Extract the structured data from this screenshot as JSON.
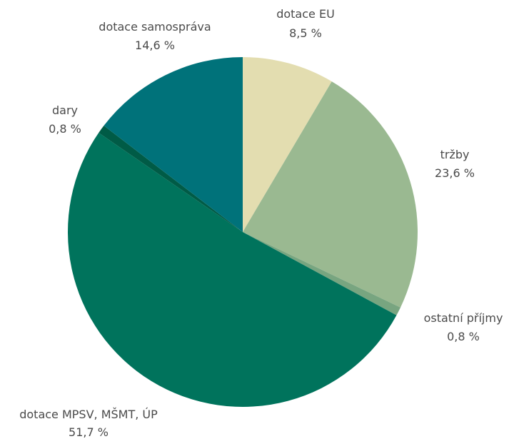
{
  "chart_data": {
    "type": "pie",
    "start_angle_deg": 0,
    "direction": "clockwise",
    "slices": [
      {
        "label": "dotace EU",
        "value_text": "8,5 %",
        "value": 8.5,
        "color": "#e3ddb0"
      },
      {
        "label": "tržby",
        "value_text": "23,6 %",
        "value": 23.6,
        "color": "#9ab991"
      },
      {
        "label": "ostatní příjmy",
        "value_text": "0,8 %",
        "value": 0.8,
        "color": "#78a580"
      },
      {
        "label": "dotace MPSV, MŠMT, ÚP",
        "value_text": "51,7 %",
        "value": 51.7,
        "color": "#00735c"
      },
      {
        "label": "dary",
        "value_text": "0,8 %",
        "value": 0.8,
        "color": "#005b46"
      },
      {
        "label": "dotace samospráva",
        "value_text": "14,6 %",
        "value": 14.6,
        "color": "#00727a"
      }
    ]
  }
}
